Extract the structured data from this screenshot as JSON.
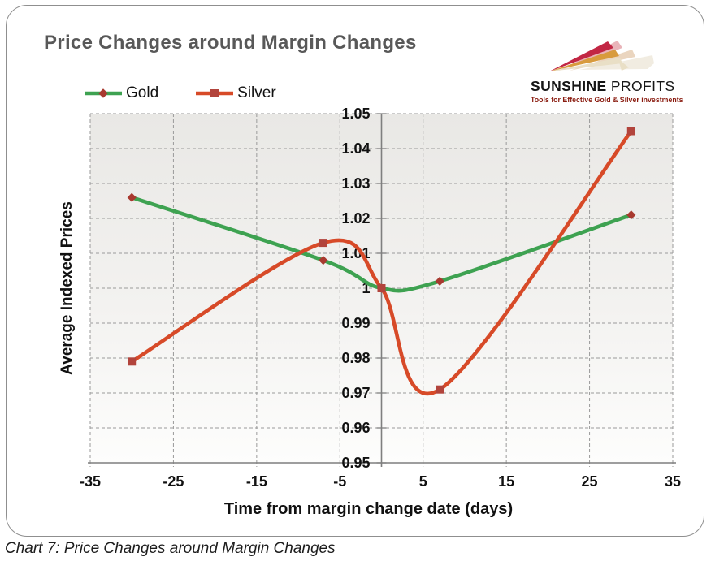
{
  "card": {
    "title": "Price Changes around Margin Changes"
  },
  "logo": {
    "name_primary": "SUNSHINE",
    "name_secondary": "PROFITS",
    "tagline": "Tools for Effective Gold & Silver investments",
    "tagline_color": "#8a1c10",
    "ray_colors": [
      "#c22744",
      "#d89b3d",
      "#e9dfc6"
    ]
  },
  "caption": "Chart 7: Price Changes around Margin Changes",
  "chart_data": {
    "type": "line",
    "title": "Price Changes around Margin Changes",
    "xlabel": "Time from margin change date (days)",
    "ylabel": "Average Indexed Prices",
    "xlim": [
      -35,
      35
    ],
    "ylim": [
      0.95,
      1.05
    ],
    "grid": "dashed",
    "smooth": true,
    "legend_position": "top-left",
    "xticks": [
      {
        "v": -35,
        "label": "-35"
      },
      {
        "v": -25,
        "label": "-25"
      },
      {
        "v": -15,
        "label": "-15"
      },
      {
        "v": -5,
        "label": "-5"
      },
      {
        "v": 5,
        "label": "5"
      },
      {
        "v": 15,
        "label": "15"
      },
      {
        "v": 25,
        "label": "25"
      },
      {
        "v": 35,
        "label": "35"
      }
    ],
    "yticks": [
      {
        "v": 1.05,
        "label": "1.05"
      },
      {
        "v": 1.04,
        "label": "1.04"
      },
      {
        "v": 1.03,
        "label": "1.03"
      },
      {
        "v": 1.02,
        "label": "1.02"
      },
      {
        "v": 1.01,
        "label": "1.01"
      },
      {
        "v": 1.0,
        "label": "1"
      },
      {
        "v": 0.99,
        "label": "0.99"
      },
      {
        "v": 0.98,
        "label": "0.98"
      },
      {
        "v": 0.97,
        "label": "0.97"
      },
      {
        "v": 0.96,
        "label": "0.96"
      },
      {
        "v": 0.95,
        "label": "0.95"
      }
    ],
    "series": [
      {
        "name": "Gold",
        "color": "#3ea251",
        "marker": "diamond",
        "marker_color": "#a8392f",
        "x": [
          -30,
          -7,
          0,
          7,
          30
        ],
        "y": [
          1.026,
          1.008,
          1.0,
          1.002,
          1.021
        ]
      },
      {
        "name": "Silver",
        "color": "#d74a28",
        "marker": "square",
        "marker_color": "#b2443c",
        "x": [
          -30,
          -7,
          0,
          7,
          30
        ],
        "y": [
          0.979,
          1.013,
          1.0,
          0.971,
          1.045
        ]
      }
    ]
  }
}
